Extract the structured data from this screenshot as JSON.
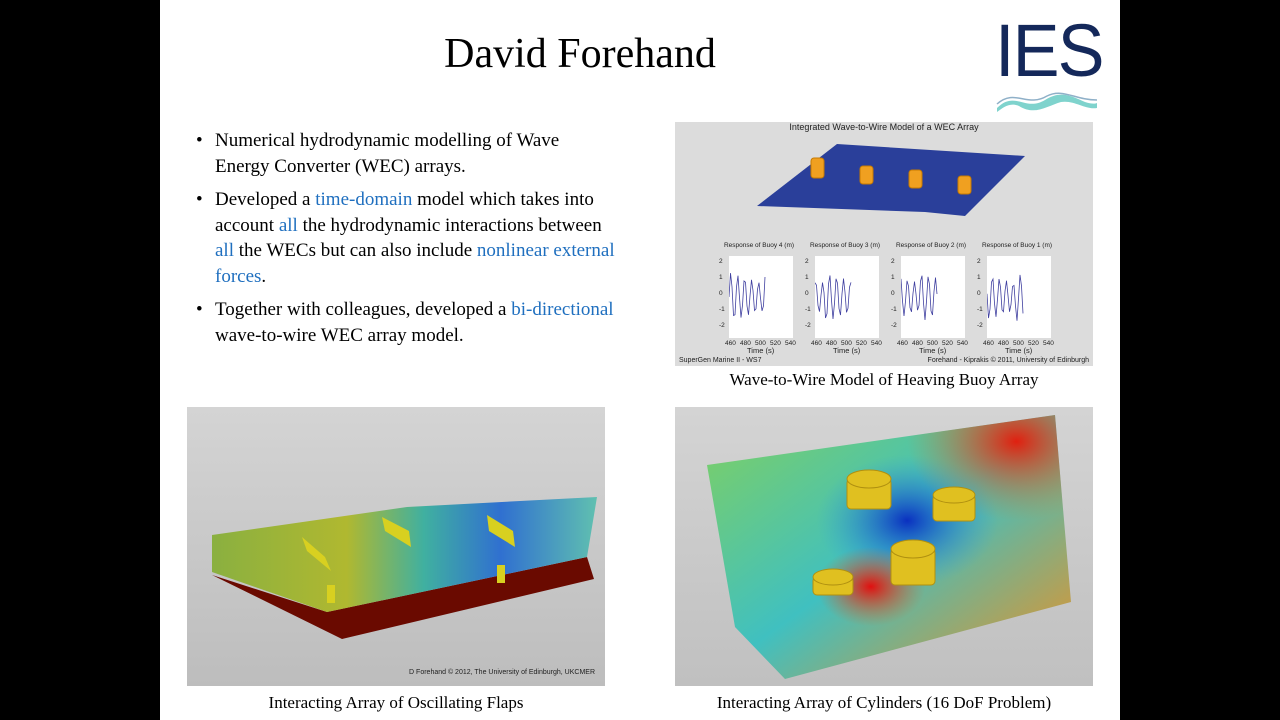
{
  "slide": {
    "title": "David Forehand",
    "logo_text": "IES",
    "bullets": [
      {
        "parts": [
          {
            "t": "Numerical hydrodynamic modelling of Wave Energy Converter (WEC) arrays.",
            "hl": false
          }
        ]
      },
      {
        "parts": [
          {
            "t": "Developed a ",
            "hl": false
          },
          {
            "t": "time-domain",
            "hl": true
          },
          {
            "t": " model which takes into account ",
            "hl": false
          },
          {
            "t": "all",
            "hl": true
          },
          {
            "t": " the hydrodynamic interactions between ",
            "hl": false
          },
          {
            "t": "all",
            "hl": true
          },
          {
            "t": " the WECs but can also include ",
            "hl": false
          },
          {
            "t": "nonlinear external forces",
            "hl": true
          },
          {
            "t": ".",
            "hl": false
          }
        ]
      },
      {
        "parts": [
          {
            "t": "Together with colleagues, developed a ",
            "hl": false
          },
          {
            "t": "bi-directional",
            "hl": true
          },
          {
            "t": " wave-to-wire WEC array model.",
            "hl": false
          }
        ]
      }
    ],
    "colors": {
      "highlight": "#1f6fbf",
      "logo": "#14285a",
      "wave_surface": "#2a3f9a",
      "buoy": "#f0a020"
    },
    "figures": {
      "wave_to_wire": {
        "title": "Integrated Wave-to-Wire Model of a WEC Array",
        "plots": [
          {
            "title": "Response of Buoy 4 (m)"
          },
          {
            "title": "Response of Buoy 3 (m)"
          },
          {
            "title": "Response of Buoy 2 (m)"
          },
          {
            "title": "Response of Buoy 1 (m)"
          }
        ],
        "y_ticks": [
          "2",
          "1",
          "0",
          "-1",
          "-2"
        ],
        "x_ticks": [
          "460",
          "480",
          "500",
          "520",
          "540"
        ],
        "x_label": "Time (s)",
        "footer_left": "SuperGen Marine II - WS7",
        "footer_right": "Forehand - Kiprakis © 2011, University of Edinburgh",
        "caption": "Wave-to-Wire Model of Heaving Buoy Array"
      },
      "flaps": {
        "credit": "D Forehand © 2012, The University of Edinburgh, UKCMER",
        "caption": "Interacting Array of Oscillating Flaps"
      },
      "cylinders": {
        "caption": "Interacting Array of Cylinders (16 DoF Problem)"
      }
    }
  }
}
